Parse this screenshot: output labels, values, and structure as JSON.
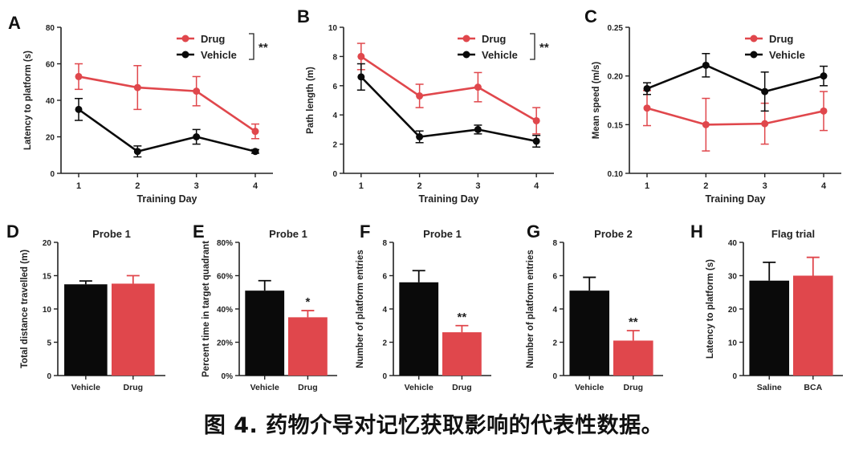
{
  "colors": {
    "drug": "#e0474c",
    "vehicle": "#0a0a0a",
    "axis": "#222222"
  },
  "caption": "图 4. 药物介导对记忆获取影响的代表性数据。",
  "chart_data": [
    {
      "panel": "A",
      "type": "line",
      "xlabel": "Training Day",
      "ylabel": "Latency to platform (s)",
      "x": [
        1,
        2,
        3,
        4
      ],
      "xlim": [
        0.7,
        4.3
      ],
      "ylim": [
        0,
        80
      ],
      "yticks": [
        0,
        20,
        40,
        60,
        80
      ],
      "yticklabels": [
        "0",
        "20",
        "40",
        "60",
        "80"
      ],
      "legend": "top-right",
      "significance": "**",
      "series": [
        {
          "name": "Drug",
          "color": "drug",
          "values": [
            53,
            47,
            45,
            23
          ],
          "errors": [
            7,
            12,
            8,
            4
          ]
        },
        {
          "name": "Vehicle",
          "color": "vehicle",
          "values": [
            35,
            12,
            20,
            12
          ],
          "errors": [
            6,
            3,
            4,
            1
          ]
        }
      ]
    },
    {
      "panel": "B",
      "type": "line",
      "xlabel": "Training Day",
      "ylabel": "Path length (m)",
      "x": [
        1,
        2,
        3,
        4
      ],
      "xlim": [
        0.7,
        4.3
      ],
      "ylim": [
        0,
        10
      ],
      "yticks": [
        0,
        2,
        4,
        6,
        8,
        10
      ],
      "yticklabels": [
        "0",
        "2",
        "4",
        "6",
        "8",
        "10"
      ],
      "legend": "top-right",
      "significance": "**",
      "series": [
        {
          "name": "Drug",
          "color": "drug",
          "values": [
            8.0,
            5.3,
            5.9,
            3.6
          ],
          "errors": [
            0.9,
            0.8,
            1.0,
            0.9
          ]
        },
        {
          "name": "Vehicle",
          "color": "vehicle",
          "values": [
            6.6,
            2.5,
            3.0,
            2.2
          ],
          "errors": [
            0.9,
            0.4,
            0.3,
            0.4
          ]
        }
      ]
    },
    {
      "panel": "C",
      "type": "line",
      "xlabel": "Training Day",
      "ylabel": "Mean speed (m/s)",
      "x": [
        1,
        2,
        3,
        4
      ],
      "xlim": [
        0.7,
        4.3
      ],
      "ylim": [
        0.1,
        0.25
      ],
      "yticks": [
        0.1,
        0.15,
        0.2,
        0.25
      ],
      "yticklabels": [
        "0.10",
        "0.15",
        "0.20",
        "0.25"
      ],
      "legend": "top-right",
      "series": [
        {
          "name": "Drug",
          "color": "drug",
          "values": [
            0.167,
            0.15,
            0.151,
            0.164
          ],
          "errors": [
            0.018,
            0.027,
            0.021,
            0.02
          ]
        },
        {
          "name": "Vehicle",
          "color": "vehicle",
          "values": [
            0.187,
            0.211,
            0.184,
            0.2
          ],
          "errors": [
            0.006,
            0.012,
            0.02,
            0.01
          ]
        }
      ]
    },
    {
      "panel": "D",
      "type": "bar",
      "title": "Probe 1",
      "ylabel": "Total distance travelled (m)",
      "ylim": [
        0,
        20
      ],
      "yticks": [
        0,
        5,
        10,
        15,
        20
      ],
      "yticklabels": [
        "0",
        "5",
        "10",
        "15",
        "20"
      ],
      "categories": [
        "Vehicle",
        "Drug"
      ],
      "values": [
        13.7,
        13.8
      ],
      "errors": [
        0.5,
        1.2
      ],
      "colors": [
        "vehicle",
        "drug"
      ],
      "annotation": ""
    },
    {
      "panel": "E",
      "type": "bar",
      "title": "Probe 1",
      "ylabel": "Percent time in target quadrant",
      "ylim": [
        0,
        80
      ],
      "yticks": [
        0,
        20,
        40,
        60,
        80
      ],
      "yticklabels": [
        "0%",
        "20%",
        "40%",
        "60%",
        "80%"
      ],
      "categories": [
        "Vehicle",
        "Drug"
      ],
      "values": [
        51,
        35
      ],
      "errors": [
        6,
        4
      ],
      "colors": [
        "vehicle",
        "drug"
      ],
      "annotation": "*"
    },
    {
      "panel": "F",
      "type": "bar",
      "title": "Probe 1",
      "ylabel": "Number of platform entries",
      "ylim": [
        0,
        8
      ],
      "yticks": [
        0,
        2,
        4,
        6,
        8
      ],
      "yticklabels": [
        "0",
        "2",
        "4",
        "6",
        "8"
      ],
      "categories": [
        "Vehicle",
        "Drug"
      ],
      "values": [
        5.6,
        2.6
      ],
      "errors": [
        0.7,
        0.4
      ],
      "colors": [
        "vehicle",
        "drug"
      ],
      "annotation": "**"
    },
    {
      "panel": "G",
      "type": "bar",
      "title": "Probe 2",
      "ylabel": "Number of platform entries",
      "ylim": [
        0,
        8
      ],
      "yticks": [
        0,
        2,
        4,
        6,
        8
      ],
      "yticklabels": [
        "0",
        "2",
        "4",
        "6",
        "8"
      ],
      "categories": [
        "Vehicle",
        "Drug"
      ],
      "values": [
        5.1,
        2.1
      ],
      "errors": [
        0.8,
        0.6
      ],
      "colors": [
        "vehicle",
        "drug"
      ],
      "annotation": "**"
    },
    {
      "panel": "H",
      "type": "bar",
      "title": "Flag trial",
      "ylabel": "Latency to platform (s)",
      "ylim": [
        0,
        40
      ],
      "yticks": [
        0,
        10,
        20,
        30,
        40
      ],
      "yticklabels": [
        "0",
        "10",
        "20",
        "30",
        "40"
      ],
      "categories": [
        "Saline",
        "BCA"
      ],
      "values": [
        28.5,
        30
      ],
      "errors": [
        5.5,
        5.5
      ],
      "colors": [
        "vehicle",
        "drug"
      ],
      "annotation": ""
    }
  ]
}
